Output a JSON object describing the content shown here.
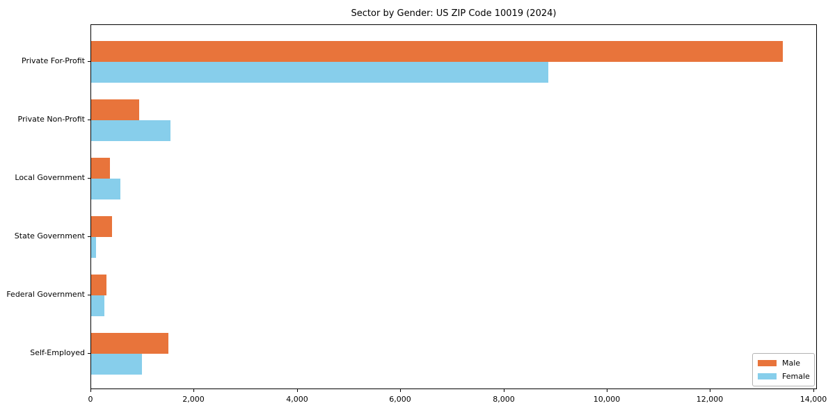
{
  "title": "Sector by Gender: US ZIP Code 10019 (2024)",
  "chart_data": {
    "type": "bar",
    "orientation": "horizontal",
    "title": "Sector by Gender: US ZIP Code 10019 (2024)",
    "xlabel": "",
    "ylabel": "",
    "categories": [
      "Private For-Profit",
      "Private Non-Profit",
      "Local Government",
      "State Government",
      "Federal Government",
      "Self-Employed"
    ],
    "series": [
      {
        "name": "Male",
        "color": "#E8743B",
        "values": [
          13400,
          930,
          370,
          410,
          300,
          1500
        ]
      },
      {
        "name": "Female",
        "color": "#87CEEB",
        "values": [
          8850,
          1540,
          560,
          90,
          260,
          980
        ]
      }
    ],
    "xlim": [
      0,
      14070
    ],
    "xticks": [
      0,
      2000,
      4000,
      6000,
      8000,
      10000,
      12000,
      14000
    ],
    "xtick_labels": [
      "0",
      "2,000",
      "4,000",
      "6,000",
      "8,000",
      "10,000",
      "12,000",
      "14,000"
    ],
    "grid": false,
    "legend": {
      "position": "lower right",
      "entries": [
        {
          "label": "Male",
          "color": "#E8743B"
        },
        {
          "label": "Female",
          "color": "#87CEEB"
        }
      ]
    }
  }
}
